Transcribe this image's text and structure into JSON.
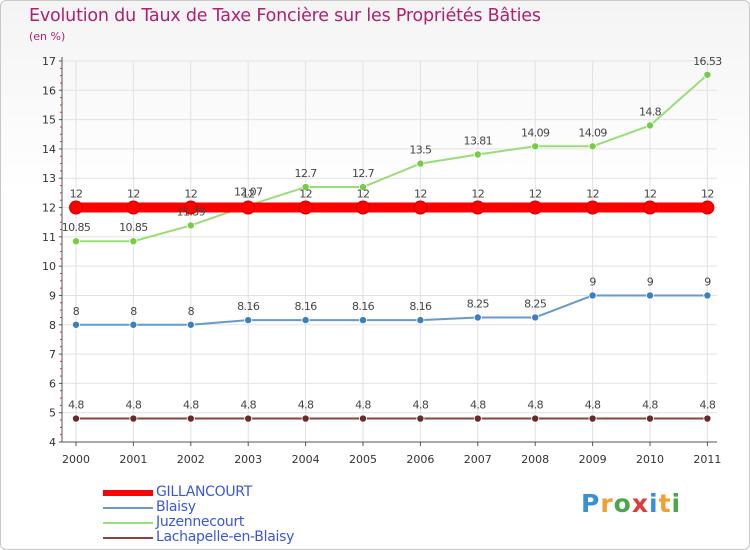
{
  "header": {
    "title": "Evolution du Taux de Taxe Foncière sur les Propriétés Bâties",
    "unit": "(en %)"
  },
  "branding": {
    "logo_letters": [
      "P",
      "r",
      "o",
      "x",
      "i",
      "t",
      "i"
    ],
    "logo_colors": [
      "#3a8fd6",
      "#f0a030",
      "#4aa84a",
      "#e03a3a",
      "#3a8fd6",
      "#f0a030",
      "#4aa84a"
    ]
  },
  "legend": [
    {
      "label": "GILLANCOURT",
      "color": "#ff0000"
    },
    {
      "label": "Blaisy",
      "color": "#6699cc"
    },
    {
      "label": "Juzennecourt",
      "color": "#99dd77"
    },
    {
      "label": "Lachapelle-en-Blaisy",
      "color": "#884444"
    }
  ],
  "chart_data": {
    "type": "line",
    "title": "Evolution du Taux de Taxe Foncière sur les Propriétés Bâties",
    "ylabel": "(en %)",
    "xlabel": "",
    "ylim": [
      4,
      17
    ],
    "yticks": [
      "4",
      "5",
      "6",
      "7",
      "8",
      "9",
      "10",
      "11",
      "12",
      "13",
      "14",
      "15",
      "16",
      "17"
    ],
    "categories": [
      "2000",
      "2001",
      "2002",
      "2003",
      "2004",
      "2005",
      "2006",
      "2007",
      "2008",
      "2009",
      "2010",
      "2011"
    ],
    "series": [
      {
        "name": "GILLANCOURT",
        "color": "#ff0000",
        "marker": "#ff0000",
        "values": [
          12,
          12,
          12,
          12,
          12,
          12,
          12,
          12,
          12,
          12,
          12,
          12
        ],
        "labels": [
          "12",
          "12",
          "12",
          "12",
          "12",
          "12",
          "12",
          "12",
          "12",
          "12",
          "12",
          "12"
        ]
      },
      {
        "name": "Blaisy",
        "color": "#6699cc",
        "marker": "#3c7fc0",
        "values": [
          8,
          8,
          8,
          8.16,
          8.16,
          8.16,
          8.16,
          8.25,
          8.25,
          9,
          9,
          9
        ],
        "labels": [
          "8",
          "8",
          "8",
          "8.16",
          "8.16",
          "8.16",
          "8.16",
          "8.25",
          "8.25",
          "9",
          "9",
          "9"
        ]
      },
      {
        "name": "Juzennecourt",
        "color": "#99dd77",
        "marker": "#77cc44",
        "values": [
          10.85,
          10.85,
          11.39,
          12.07,
          12.7,
          12.7,
          13.5,
          13.81,
          14.09,
          14.09,
          14.8,
          16.53
        ],
        "labels": [
          "10.85",
          "10.85",
          "11.39",
          "12.07",
          "12.7",
          "12.7",
          "13.5",
          "13.81",
          "14.09",
          "14.09",
          "14.8",
          "16.53"
        ]
      },
      {
        "name": "Lachapelle-en-Blaisy",
        "color": "#884444",
        "marker": "#6a2a2a",
        "values": [
          4.8,
          4.8,
          4.8,
          4.8,
          4.8,
          4.8,
          4.8,
          4.8,
          4.8,
          4.8,
          4.8,
          4.8
        ],
        "labels": [
          "4.8",
          "4.8",
          "4.8",
          "4.8",
          "4.8",
          "4.8",
          "4.8",
          "4.8",
          "4.8",
          "4.8",
          "4.8",
          "4.8"
        ]
      }
    ]
  }
}
